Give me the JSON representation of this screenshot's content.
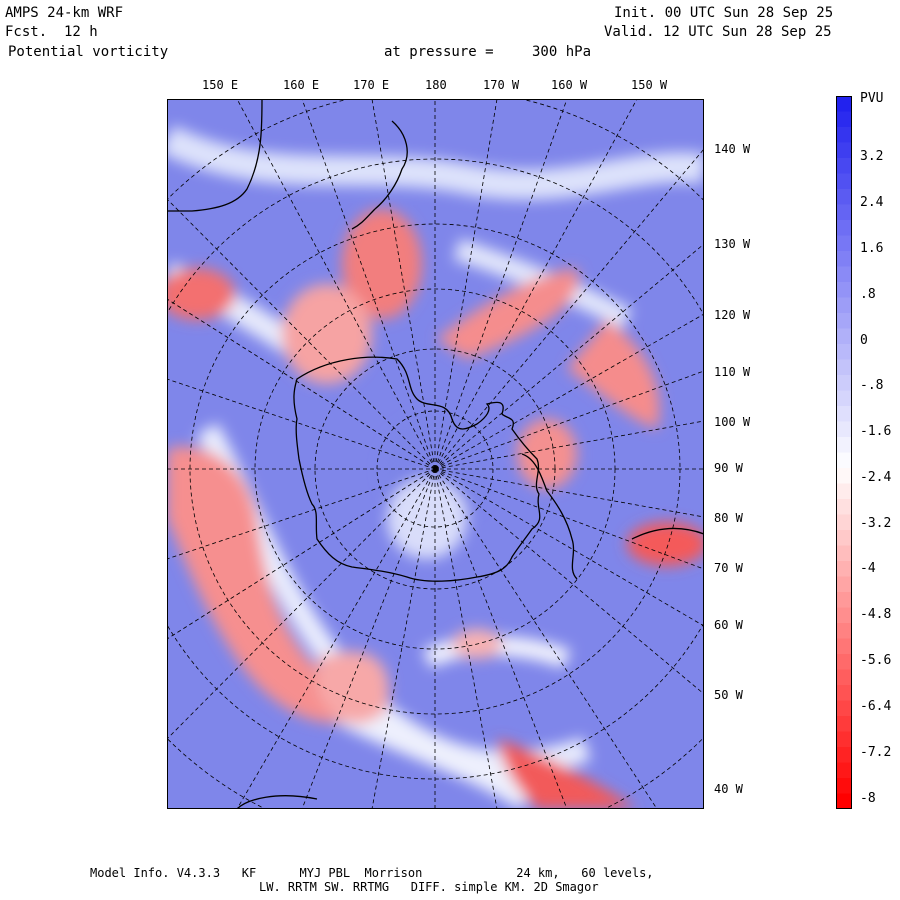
{
  "header": {
    "model": "AMPS 24-km WRF",
    "forecast_label": "Fcst.",
    "forecast_value": "12 h",
    "field": "Potential vorticity",
    "pressure_label": "at pressure =",
    "pressure_value": "300 hPa",
    "init": "Init. 00 UTC Sun 28 Sep 25",
    "valid": "Valid. 12 UTC Sun 28 Sep 25"
  },
  "map": {
    "projection": "polar stereographic",
    "center": "South Pole",
    "top_longitude_labels": [
      "150 E",
      "160 E",
      "170 E",
      "180",
      "170 W",
      "160 W",
      "150 W"
    ],
    "right_longitude_labels": [
      "140 W",
      "130 W",
      "120 W",
      "110 W",
      "100 W",
      "90 W",
      "80 W",
      "70 W",
      "60 W",
      "50 W",
      "40 W"
    ]
  },
  "colorbar": {
    "unit": "PVU",
    "tick_labels": [
      "3.2",
      "2.4",
      "1.6",
      ".8",
      "0",
      "-.8",
      "-1.6",
      "-2.4",
      "-3.2",
      "-4",
      "-4.8",
      "-5.6",
      "-6.4",
      "-7.2",
      "-8"
    ],
    "max_color": "#2222ee",
    "mid_color": "#ffffff",
    "min_color": "#ff0000"
  },
  "footer": {
    "line1": "Model Info. V4.3.3   KF      MYJ PBL  Morrison             24 km,   60 levels,",
    "line2": "LW. RRTM SW. RRTMG   DIFF. simple KM. 2D Smagor"
  }
}
